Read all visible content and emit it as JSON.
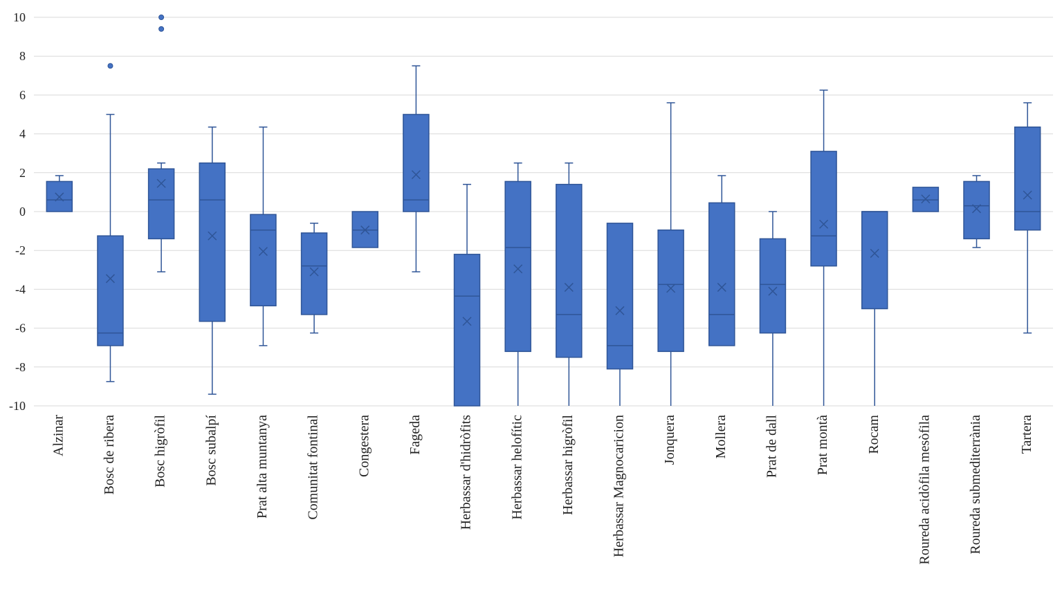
{
  "chart_data": {
    "type": "boxplot",
    "title": "",
    "xlabel": "",
    "ylabel": "",
    "ylim": [
      -10,
      10
    ],
    "yticks": [
      -10,
      -8,
      -6,
      -4,
      -2,
      0,
      2,
      4,
      6,
      8,
      10
    ],
    "ytick_labels": [
      "-10",
      "-8",
      "-6",
      "-4",
      "-2",
      "0",
      "2",
      "4",
      "6",
      "8",
      "10"
    ],
    "grid": true,
    "legend": "none",
    "color": "#4472C4",
    "edge_color": "#2F5597",
    "categories": [
      "Alzinar",
      "Bosc de ribera",
      "Bosc higròfil",
      "Bosc subalpí",
      "Prat alta muntanya",
      "Comunitat fontinal",
      "Congestera",
      "Fageda",
      "Herbassar d'hidròfits",
      "Herbassar helofític",
      "Herbassar higròfil",
      "Herbassar Magnocaricion",
      "Jonquera",
      "Mollera",
      "Prat de dall",
      "Prat montà",
      "Rocam",
      "Roureda acidòfila mesòfila",
      "Roureda submediterrània",
      "Tartera"
    ],
    "boxes": [
      {
        "whisker_low": 0,
        "q1": 0,
        "median": 0.6,
        "q3": 1.55,
        "whisker_high": 1.85,
        "mean": 0.75,
        "outliers": []
      },
      {
        "whisker_low": -8.75,
        "q1": -6.9,
        "median": -6.25,
        "q3": -1.25,
        "whisker_high": 5.0,
        "mean": -3.45,
        "outliers": [
          7.5
        ]
      },
      {
        "whisker_low": -3.1,
        "q1": -1.4,
        "median": 0.6,
        "q3": 2.2,
        "whisker_high": 2.5,
        "mean": 1.45,
        "outliers": [
          10.0,
          9.4
        ]
      },
      {
        "whisker_low": -9.4,
        "q1": -5.65,
        "median": 0.6,
        "q3": 2.5,
        "whisker_high": 4.35,
        "mean": -1.25,
        "outliers": []
      },
      {
        "whisker_low": -6.9,
        "q1": -4.85,
        "median": -0.95,
        "q3": -0.15,
        "whisker_high": 4.35,
        "mean": -2.05,
        "outliers": []
      },
      {
        "whisker_low": -6.25,
        "q1": -5.3,
        "median": -2.8,
        "q3": -1.1,
        "whisker_high": -0.6,
        "mean": -3.1,
        "outliers": []
      },
      {
        "whisker_low": -1.85,
        "q1": -1.85,
        "median": -0.95,
        "q3": 0,
        "whisker_high": 0,
        "mean": -0.95,
        "outliers": []
      },
      {
        "whisker_low": -3.1,
        "q1": 0,
        "median": 0.6,
        "q3": 5.0,
        "whisker_high": 7.5,
        "mean": 1.9,
        "outliers": []
      },
      {
        "whisker_low": -10,
        "q1": -10,
        "median": -4.35,
        "q3": -2.2,
        "whisker_high": 1.4,
        "mean": -5.65,
        "outliers": []
      },
      {
        "whisker_low": -10,
        "q1": -7.2,
        "median": -1.85,
        "q3": 1.55,
        "whisker_high": 2.5,
        "mean": -2.95,
        "outliers": []
      },
      {
        "whisker_low": -10,
        "q1": -7.5,
        "median": -5.3,
        "q3": 1.4,
        "whisker_high": 2.5,
        "mean": -3.9,
        "outliers": []
      },
      {
        "whisker_low": -10,
        "q1": -8.1,
        "median": -6.9,
        "q3": -0.6,
        "whisker_high": -0.6,
        "mean": -5.1,
        "outliers": []
      },
      {
        "whisker_low": -10,
        "q1": -7.2,
        "median": -3.75,
        "q3": -0.95,
        "whisker_high": 5.6,
        "mean": -3.95,
        "outliers": []
      },
      {
        "whisker_low": -6.9,
        "q1": -6.9,
        "median": -5.3,
        "q3": 0.45,
        "whisker_high": 1.85,
        "mean": -3.9,
        "outliers": []
      },
      {
        "whisker_low": -10,
        "q1": -6.25,
        "median": -3.75,
        "q3": -1.4,
        "whisker_high": 0,
        "mean": -4.1,
        "outliers": []
      },
      {
        "whisker_low": -10,
        "q1": -2.8,
        "median": -1.25,
        "q3": 3.1,
        "whisker_high": 6.25,
        "mean": -0.65,
        "outliers": []
      },
      {
        "whisker_low": -10,
        "q1": -5.0,
        "median": 0,
        "q3": 0,
        "whisker_high": 0,
        "mean": -2.15,
        "outliers": []
      },
      {
        "whisker_low": 0,
        "q1": 0,
        "median": 0.6,
        "q3": 1.25,
        "whisker_high": 1.25,
        "mean": 0.65,
        "outliers": []
      },
      {
        "whisker_low": -1.85,
        "q1": -1.4,
        "median": 0.3,
        "q3": 1.55,
        "whisker_high": 1.85,
        "mean": 0.15,
        "outliers": []
      },
      {
        "whisker_low": -6.25,
        "q1": -0.95,
        "median": 0,
        "q3": 4.35,
        "whisker_high": 5.6,
        "mean": 0.85,
        "outliers": []
      }
    ]
  }
}
